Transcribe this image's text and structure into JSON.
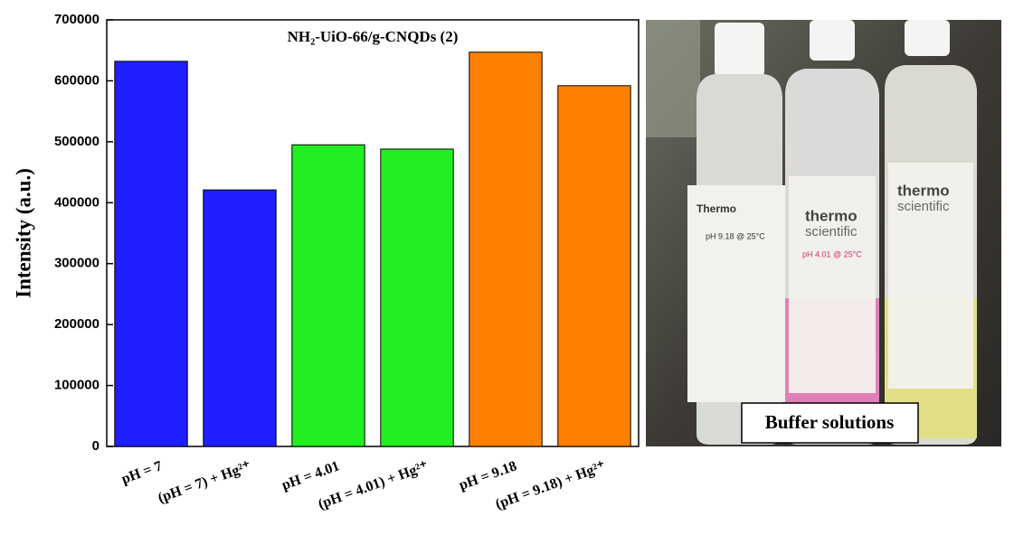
{
  "chart_data": {
    "type": "bar",
    "title": "NH₂-UiO-66/g-CNQDs (2)",
    "y_label": "Intensity (a.u.)",
    "categories": [
      "pH = 7",
      "(pH = 7) + Hg²⁺",
      "pH = 4.01",
      "(pH = 4.01) + Hg²⁺",
      "pH = 9.18",
      "(pH = 9.18) + Hg²⁺"
    ],
    "values": [
      632000,
      421000,
      495000,
      488000,
      647000,
      592000
    ],
    "colors": [
      "#1f1fff",
      "#1f1fff",
      "#22ee22",
      "#22ee22",
      "#ff8000",
      "#ff8000"
    ],
    "ylim": [
      0,
      700000
    ],
    "yticks": [
      0,
      100000,
      200000,
      300000,
      400000,
      500000,
      600000,
      700000
    ],
    "grid": false
  },
  "photo": {
    "caption": "Buffer solutions",
    "labels": [
      "Thermo",
      "pH 9.18 @ 25°C",
      "thermo",
      "scientific",
      "pH 4.01 @ 25°C",
      "thermo",
      "scientific"
    ]
  }
}
